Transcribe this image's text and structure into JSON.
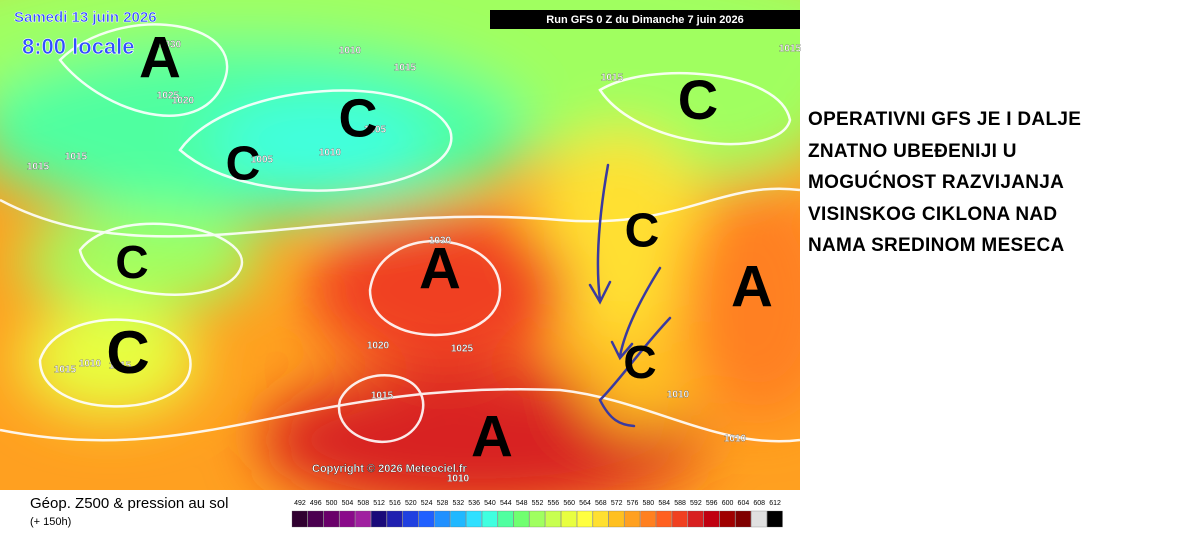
{
  "map": {
    "date": "Samedi 13 juin 2026",
    "time": "8:00 locale",
    "run": "Run GFS 0 Z du Dimanche 7 juin 2026",
    "copyright": "Copyright © 2026 Meteociel.fr",
    "pressure_labels": [
      1030,
      1025,
      1020,
      1010,
      1015,
      1015,
      1015,
      1015,
      1015,
      1005,
      1010,
      1005,
      1030,
      1025,
      1020,
      1015,
      1010,
      1015,
      1015,
      1010,
      1010,
      1010
    ],
    "systems": [
      "A",
      "C",
      "C",
      "C",
      "C",
      "C",
      "A",
      "C",
      "A",
      "C",
      "A"
    ]
  },
  "legend": {
    "title": "Géop. Z500 & pression au sol",
    "lead": "(+ 150h)",
    "values": [
      492,
      496,
      500,
      504,
      508,
      512,
      516,
      520,
      524,
      528,
      532,
      536,
      540,
      544,
      548,
      552,
      556,
      560,
      564,
      568,
      572,
      576,
      580,
      584,
      588,
      592,
      596,
      600,
      604,
      608,
      612
    ],
    "colors": [
      "#300030",
      "#4b0050",
      "#6a006a",
      "#8a0a8a",
      "#a020a0",
      "#1a0a7a",
      "#2020b0",
      "#2040e0",
      "#2060ff",
      "#2090ff",
      "#20b8ff",
      "#30e0ff",
      "#40ffe0",
      "#50ffa0",
      "#70ff70",
      "#a0ff60",
      "#c8ff50",
      "#e8ff40",
      "#ffff40",
      "#ffe030",
      "#ffc020",
      "#ffa020",
      "#ff8020",
      "#ff6020",
      "#f04020",
      "#d82020",
      "#c00010",
      "#a00000",
      "#800000",
      "#e0e0e0",
      "#000000"
    ]
  },
  "annotation": {
    "lines": [
      "OPERATIVNI GFS JE I DALJE",
      "ZNATNO UBEĐENIJI U",
      "MOGUĆNOST RAZVIJANJA",
      "VISINSKOG CIKLONA NAD",
      "NAMA SREDINOM MESECA"
    ]
  }
}
